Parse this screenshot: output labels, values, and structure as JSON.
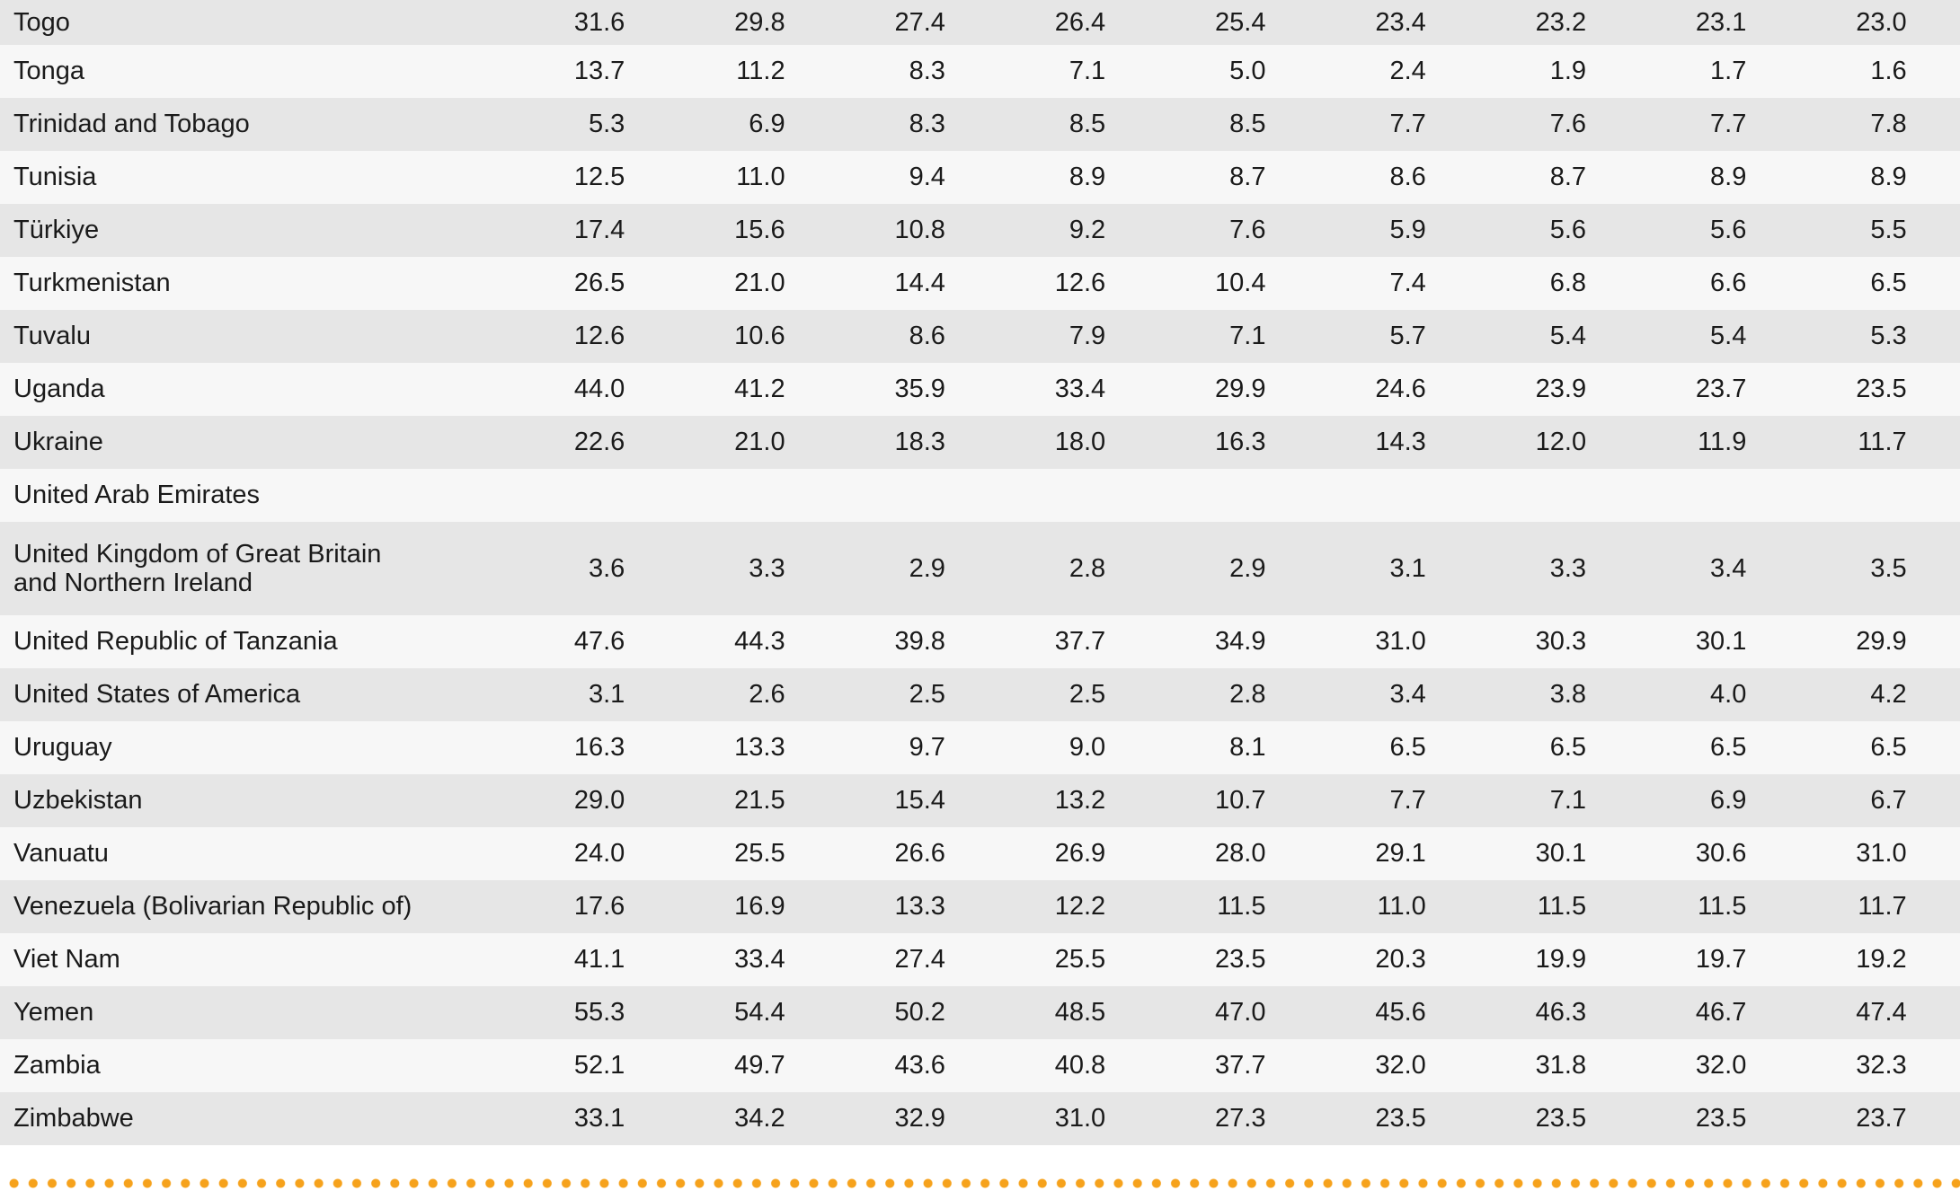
{
  "accent_colors": {
    "stripe_gray": "#e6e6e6",
    "stripe_light": "#f7f7f7",
    "dot_orange": "#f6a21c",
    "text": "#1a1a1a"
  },
  "divider": {
    "style": "orange-dotted-line"
  },
  "table": {
    "columns_count": 9,
    "rows": [
      {
        "country": "Togo",
        "values": [
          "31.6",
          "29.8",
          "27.4",
          "26.4",
          "25.4",
          "23.4",
          "23.2",
          "23.1",
          "23.0"
        ]
      },
      {
        "country": "Tonga",
        "values": [
          "13.7",
          "11.2",
          "8.3",
          "7.1",
          "5.0",
          "2.4",
          "1.9",
          "1.7",
          "1.6"
        ]
      },
      {
        "country": "Trinidad and Tobago",
        "values": [
          "5.3",
          "6.9",
          "8.3",
          "8.5",
          "8.5",
          "7.7",
          "7.6",
          "7.7",
          "7.8"
        ]
      },
      {
        "country": "Tunisia",
        "values": [
          "12.5",
          "11.0",
          "9.4",
          "8.9",
          "8.7",
          "8.6",
          "8.7",
          "8.9",
          "8.9"
        ]
      },
      {
        "country": "Türkiye",
        "values": [
          "17.4",
          "15.6",
          "10.8",
          "9.2",
          "7.6",
          "5.9",
          "5.6",
          "5.6",
          "5.5"
        ]
      },
      {
        "country": "Turkmenistan",
        "values": [
          "26.5",
          "21.0",
          "14.4",
          "12.6",
          "10.4",
          "7.4",
          "6.8",
          "6.6",
          "6.5"
        ]
      },
      {
        "country": "Tuvalu",
        "values": [
          "12.6",
          "10.6",
          "8.6",
          "7.9",
          "7.1",
          "5.7",
          "5.4",
          "5.4",
          "5.3"
        ]
      },
      {
        "country": "Uganda",
        "values": [
          "44.0",
          "41.2",
          "35.9",
          "33.4",
          "29.9",
          "24.6",
          "23.9",
          "23.7",
          "23.5"
        ]
      },
      {
        "country": "Ukraine",
        "values": [
          "22.6",
          "21.0",
          "18.3",
          "18.0",
          "16.3",
          "14.3",
          "12.0",
          "11.9",
          "11.7"
        ]
      },
      {
        "country": "United Arab Emirates",
        "values": [
          "",
          "",
          "",
          "",
          "",
          "",
          "",
          "",
          ""
        ]
      },
      {
        "country": "United Kingdom of Great Britain and Northern Ireland",
        "country_lines": [
          "United Kingdom of Great Britain",
          "and Northern Ireland"
        ],
        "values": [
          "3.6",
          "3.3",
          "2.9",
          "2.8",
          "2.9",
          "3.1",
          "3.3",
          "3.4",
          "3.5"
        ]
      },
      {
        "country": "United Republic of Tanzania",
        "values": [
          "47.6",
          "44.3",
          "39.8",
          "37.7",
          "34.9",
          "31.0",
          "30.3",
          "30.1",
          "29.9"
        ]
      },
      {
        "country": "United States of America",
        "values": [
          "3.1",
          "2.6",
          "2.5",
          "2.5",
          "2.8",
          "3.4",
          "3.8",
          "4.0",
          "4.2"
        ]
      },
      {
        "country": "Uruguay",
        "values": [
          "16.3",
          "13.3",
          "9.7",
          "9.0",
          "8.1",
          "6.5",
          "6.5",
          "6.5",
          "6.5"
        ]
      },
      {
        "country": "Uzbekistan",
        "values": [
          "29.0",
          "21.5",
          "15.4",
          "13.2",
          "10.7",
          "7.7",
          "7.1",
          "6.9",
          "6.7"
        ]
      },
      {
        "country": "Vanuatu",
        "values": [
          "24.0",
          "25.5",
          "26.6",
          "26.9",
          "28.0",
          "29.1",
          "30.1",
          "30.6",
          "31.0"
        ]
      },
      {
        "country": "Venezuela (Bolivarian Republic of)",
        "values": [
          "17.6",
          "16.9",
          "13.3",
          "12.2",
          "11.5",
          "11.0",
          "11.5",
          "11.5",
          "11.7"
        ]
      },
      {
        "country": "Viet Nam",
        "values": [
          "41.1",
          "33.4",
          "27.4",
          "25.5",
          "23.5",
          "20.3",
          "19.9",
          "19.7",
          "19.2"
        ]
      },
      {
        "country": "Yemen",
        "values": [
          "55.3",
          "54.4",
          "50.2",
          "48.5",
          "47.0",
          "45.6",
          "46.3",
          "46.7",
          "47.4"
        ]
      },
      {
        "country": "Zambia",
        "values": [
          "52.1",
          "49.7",
          "43.6",
          "40.8",
          "37.7",
          "32.0",
          "31.8",
          "32.0",
          "32.3"
        ]
      },
      {
        "country": "Zimbabwe",
        "values": [
          "33.1",
          "34.2",
          "32.9",
          "31.0",
          "27.3",
          "23.5",
          "23.5",
          "23.5",
          "23.7"
        ]
      }
    ]
  }
}
